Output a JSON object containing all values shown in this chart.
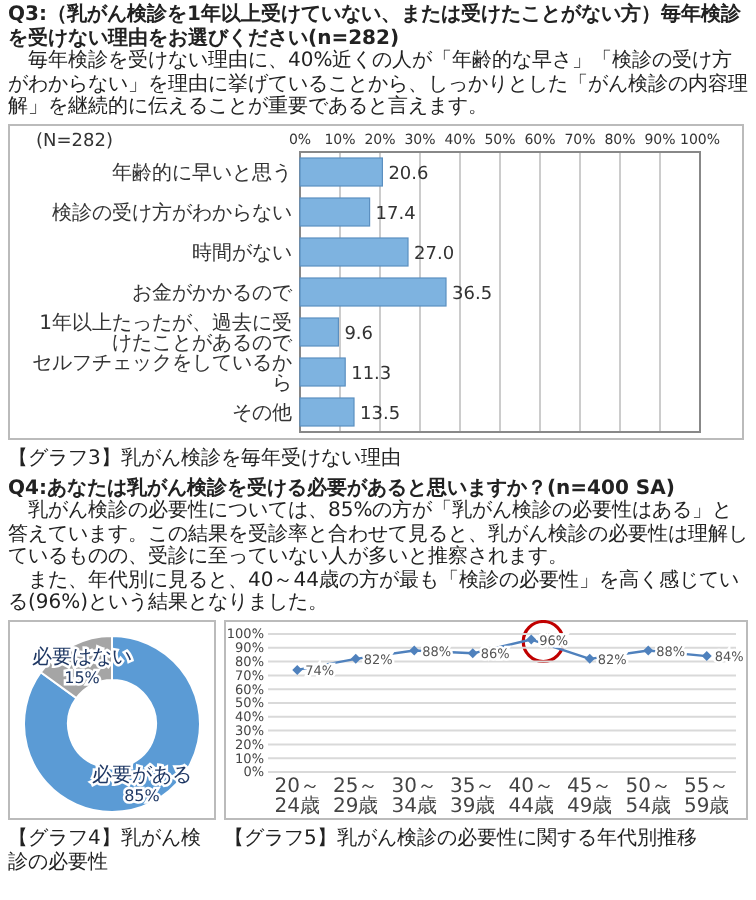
{
  "chart_data": [
    {
      "type": "bar",
      "orientation": "horizontal",
      "title": "Q3:（乳がん検診を1年以上受けていない、または受けたことがない方）毎年検診を受けない理由をお選びください(n=282)",
      "subtitle": "毎年検診を受けない理由に、40%近くの人が「年齢的な早さ」「検診の受け方がわからない」を理由に挙げていることから、しっかりとした「がん検診の内容理解」を継続的に伝えることが重要であると言えます。",
      "categories": [
        "年齢的に早いと思う",
        "検診の受け方がわからない",
        "時間がない",
        "お金がかかるので",
        "1年以上たったが、過去に受けたことがあるので",
        "セルフチェックをしているから",
        "その他"
      ],
      "values": [
        20.6,
        17.4,
        27.0,
        36.5,
        9.6,
        11.3,
        13.5
      ],
      "value_labels": [
        "20.6",
        "17.4",
        "27.0",
        "36.5",
        "9.6",
        "11.3",
        "13.5"
      ],
      "color": "#7eb3e0",
      "xlim": [
        0,
        100
      ],
      "xticks": [
        {
          "value": 0,
          "label": "0%"
        },
        {
          "value": 10,
          "label": "10%"
        },
        {
          "value": 20,
          "label": "20%"
        },
        {
          "value": 30,
          "label": "30%"
        },
        {
          "value": 40,
          "label": "40%"
        },
        {
          "value": 50,
          "label": "50%"
        },
        {
          "value": 60,
          "label": "60%"
        },
        {
          "value": 70,
          "label": "70%"
        },
        {
          "value": 80,
          "label": "80%"
        },
        {
          "value": 90,
          "label": "90%"
        },
        {
          "value": 100,
          "label": "100%"
        }
      ],
      "grid": "x",
      "tick_labels": "x",
      "annotations": [
        "(N=282)",
        "【グラフ3】乳がん検診を毎年受けない理由"
      ]
    },
    {
      "type": "donut",
      "title": "Q4:あなたは乳がん検診を受ける必要があると思いますか？(n=400 SA)",
      "subtitle": "乳がん検診の必要性については、85%の方が「乳がん検診の必要性はある」と答えています。この結果を受診率と合わせて見ると、乳がん検診の必要性は理解しているものの、受診に至っていない人が多いと推察されます。",
      "categories": [
        "必要がある",
        "必要はない"
      ],
      "values": [
        85,
        15
      ],
      "value_labels": [
        "85%",
        "15%"
      ],
      "colors": [
        "#5b9bd5",
        "#a5a5a5"
      ],
      "annotations": [
        "【グラフ4】乳がん検診の必要性"
      ]
    },
    {
      "type": "line",
      "categories": [
        "20～24歳",
        "25～29歳",
        "30～34歳",
        "35～39歳",
        "40～44歳",
        "45～49歳",
        "50～54歳",
        "55～59歳"
      ],
      "values": [
        74,
        82,
        88,
        86,
        96,
        82,
        88,
        84
      ],
      "value_labels": [
        "74%",
        "82%",
        "88%",
        "86%",
        "96%",
        "82%",
        "88%",
        "84%"
      ],
      "color": "#4f81bd",
      "marker": "diamond",
      "ylim": [
        0,
        100
      ],
      "yticks": [
        {
          "value": 0,
          "label": "0%"
        },
        {
          "value": 10,
          "label": "10%"
        },
        {
          "value": 20,
          "label": "20%"
        },
        {
          "value": 30,
          "label": "30%"
        },
        {
          "value": 40,
          "label": "40%"
        },
        {
          "value": 50,
          "label": "50%"
        },
        {
          "value": 60,
          "label": "60%"
        },
        {
          "value": 70,
          "label": "70%"
        },
        {
          "value": 80,
          "label": "80%"
        },
        {
          "value": 90,
          "label": "90%"
        },
        {
          "value": 100,
          "label": "100%"
        }
      ],
      "grid": "y",
      "annotations": [
        "また、年代別に見ると、40～44歳の方が最も「検診の必要性」を高く感じている(96%)という結果となりました。",
        "【グラフ5】乳がん検診の必要性に関する年代別推移"
      ]
    }
  ]
}
